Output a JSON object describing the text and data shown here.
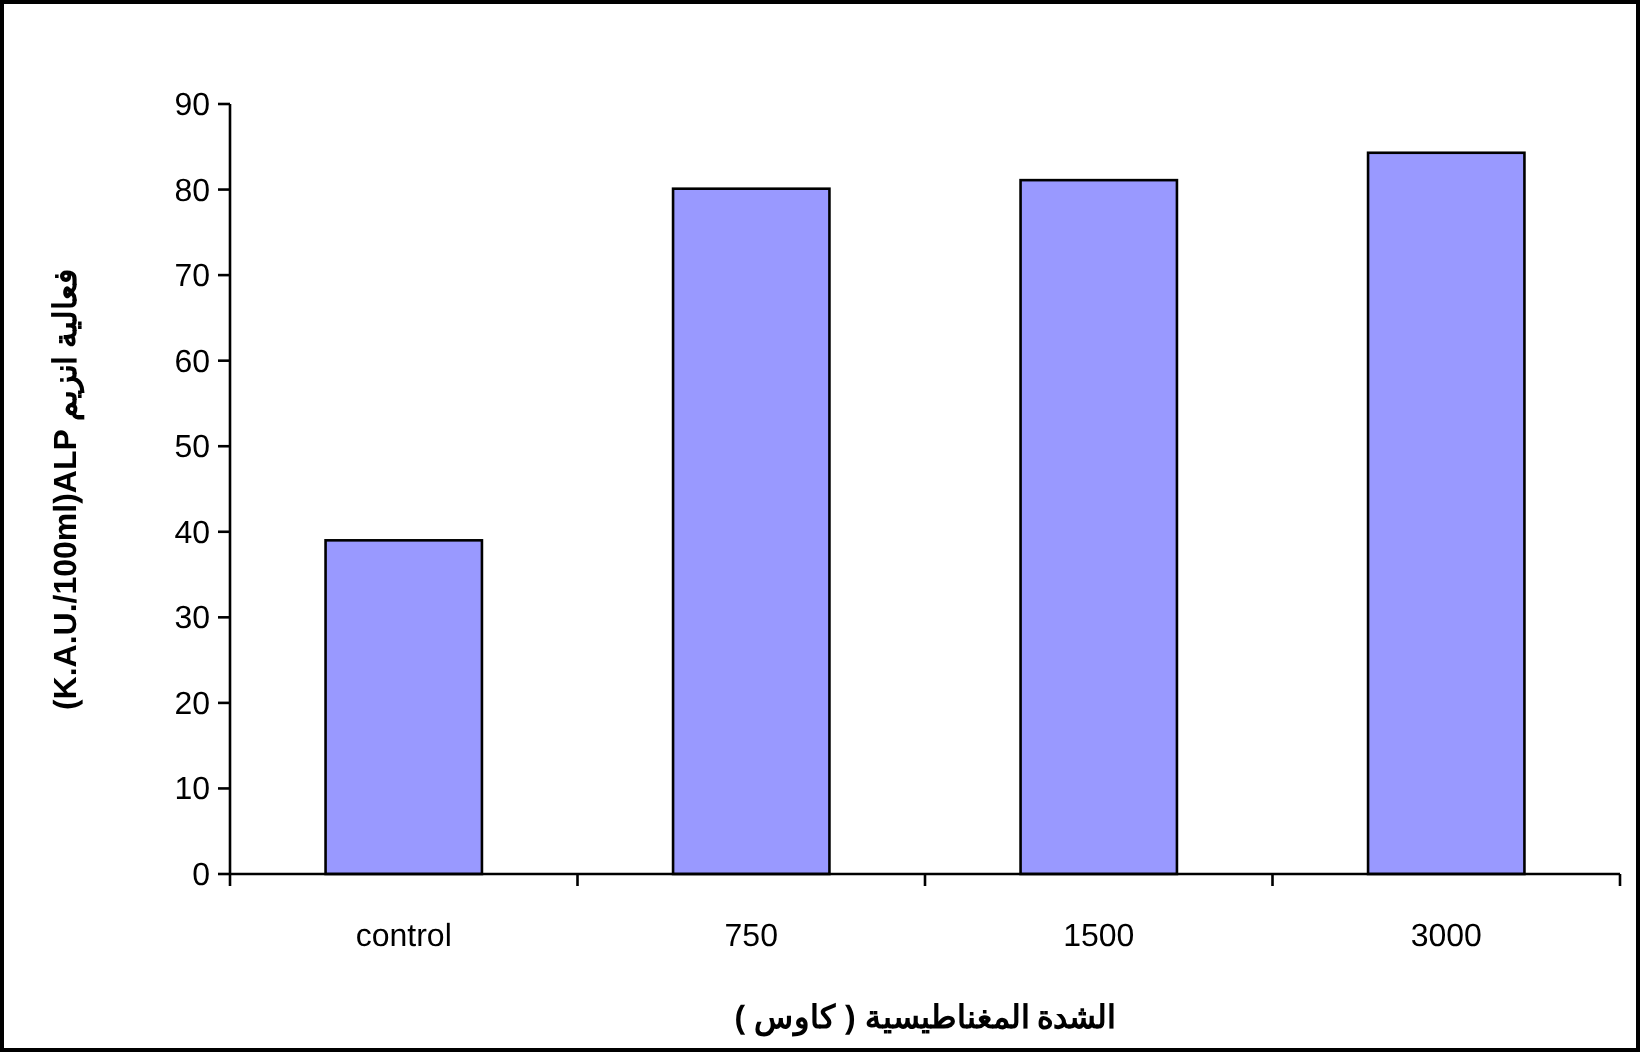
{
  "chart_data": {
    "type": "bar",
    "xlabel": "الشدة المغناطيسية ( كاوس )",
    "ylabel": "(K.A.U./100ml)ALP فعالية انزيم",
    "categories": [
      "control",
      "750",
      "1500",
      "3000"
    ],
    "values": [
      39.0,
      80.1,
      81.1,
      84.3
    ],
    "color": "#9999ff",
    "ylim": [
      0,
      90
    ],
    "yticks": [
      0,
      10,
      20,
      30,
      40,
      50,
      60,
      70,
      80,
      90
    ]
  }
}
